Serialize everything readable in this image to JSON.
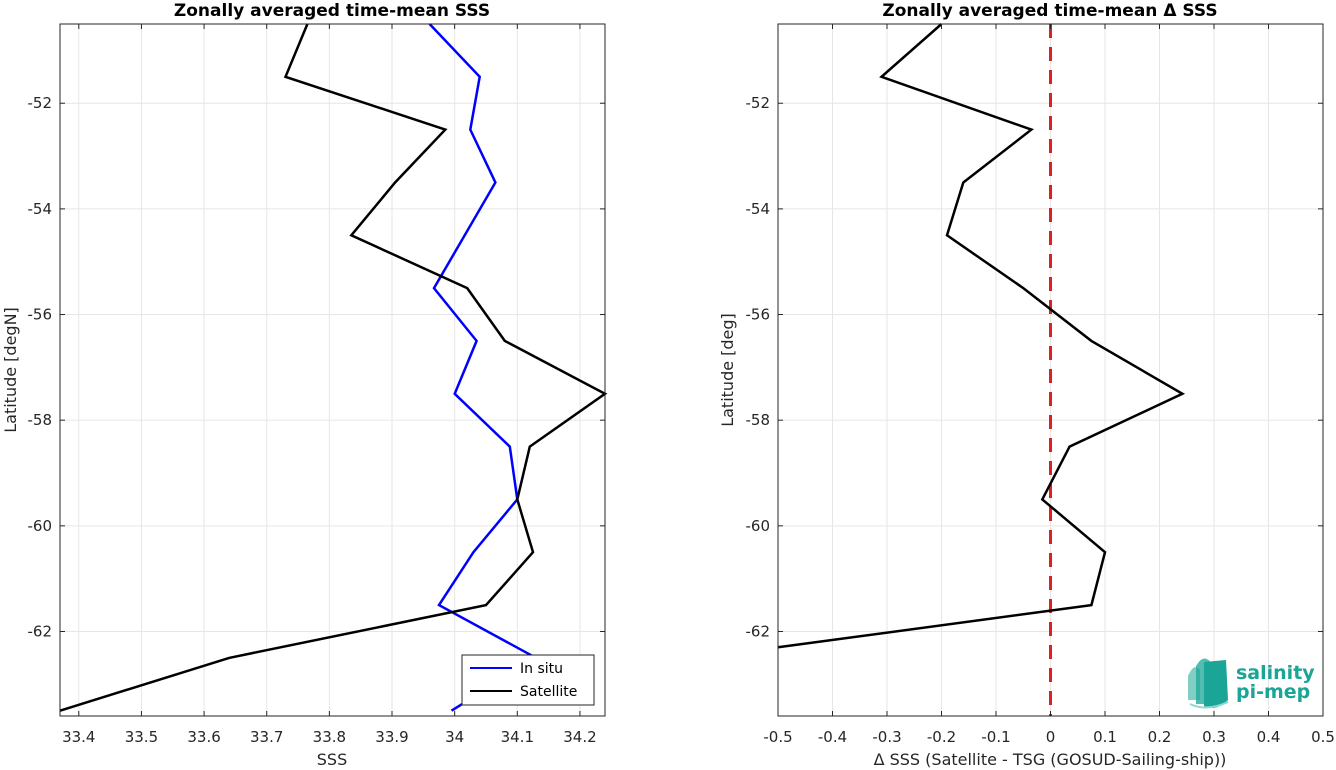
{
  "chart_data": [
    {
      "type": "line",
      "title": "Zonally averaged time-mean SSS",
      "xlabel": "SSS",
      "ylabel": "Latitude [degN]",
      "xlim": [
        33.37,
        34.24
      ],
      "ylim": [
        -63.6,
        -50.5
      ],
      "xticks": [
        "33.4",
        "33.5",
        "33.6",
        "33.7",
        "33.8",
        "33.9",
        "34",
        "34.1",
        "34.2"
      ],
      "xtick_values": [
        33.4,
        33.5,
        33.6,
        33.7,
        33.8,
        33.9,
        34.0,
        34.1,
        34.2
      ],
      "yticks": [
        "-52",
        "-54",
        "-56",
        "-58",
        "-60",
        "-62"
      ],
      "ytick_values": [
        -52,
        -54,
        -56,
        -58,
        -60,
        -62
      ],
      "grid": true,
      "legend_position": "bottom-right",
      "series": [
        {
          "name": "In situ",
          "color": "#0000ff",
          "x": [
            33.96,
            34.04,
            34.025,
            34.065,
            33.967,
            34.035,
            34.0,
            34.088,
            34.1,
            34.03,
            33.975,
            34.13,
            33.995
          ],
          "y": [
            -50.5,
            -51.5,
            -52.5,
            -53.5,
            -55.5,
            -56.5,
            -57.5,
            -58.5,
            -59.5,
            -60.5,
            -61.5,
            -62.5,
            -63.5
          ]
        },
        {
          "name": "Satellite",
          "color": "#000000",
          "x": [
            33.765,
            33.73,
            33.985,
            33.905,
            33.835,
            34.02,
            34.08,
            34.24,
            34.12,
            34.1,
            34.125,
            34.05,
            33.64,
            33.37
          ],
          "y": [
            -50.5,
            -51.5,
            -52.5,
            -53.5,
            -54.5,
            -55.5,
            -56.5,
            -57.5,
            -58.5,
            -59.5,
            -60.5,
            -61.5,
            -62.5,
            -63.5
          ]
        }
      ]
    },
    {
      "type": "line",
      "title": "Zonally averaged time-mean Δ SSS",
      "xlabel": "Δ SSS (Satellite - TSG (GOSUD-Sailing-ship))",
      "ylabel": "Latitude [deg]",
      "xlim": [
        -0.5,
        0.5
      ],
      "ylim": [
        -63.6,
        -50.5
      ],
      "xticks": [
        "-0.5",
        "-0.4",
        "-0.3",
        "-0.2",
        "-0.1",
        "0",
        "0.1",
        "0.2",
        "0.3",
        "0.4",
        "0.5"
      ],
      "xtick_values": [
        -0.5,
        -0.4,
        -0.3,
        -0.2,
        -0.1,
        0,
        0.1,
        0.2,
        0.3,
        0.4,
        0.5
      ],
      "yticks": [
        "-52",
        "-54",
        "-56",
        "-58",
        "-60",
        "-62"
      ],
      "ytick_values": [
        -52,
        -54,
        -56,
        -58,
        -60,
        -62
      ],
      "grid": true,
      "reference_line": {
        "x": 0,
        "color": "#e02020",
        "style": "dashed"
      },
      "series": [
        {
          "color": "#000000",
          "x": [
            -0.2,
            -0.31,
            -0.035,
            -0.16,
            -0.19,
            -0.05,
            0.075,
            0.242,
            0.035,
            -0.015,
            0.1,
            0.075,
            -0.5
          ],
          "y": [
            -50.5,
            -51.5,
            -52.5,
            -53.5,
            -54.5,
            -55.5,
            -56.5,
            -57.5,
            -58.5,
            -59.5,
            -60.5,
            -61.5,
            -62.3
          ]
        }
      ]
    }
  ],
  "logo": {
    "line1": "salinity",
    "line2": "pi-mep",
    "color": "#1aa596"
  }
}
